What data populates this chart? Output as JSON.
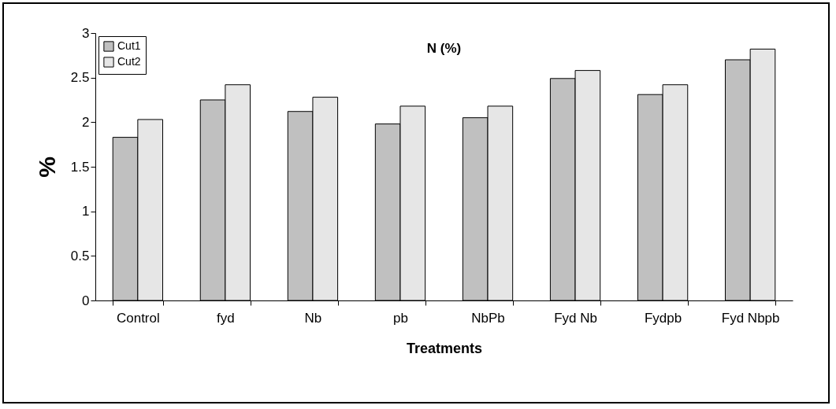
{
  "chart_data": {
    "type": "bar",
    "title": "N (%)",
    "xlabel": "Treatments",
    "ylabel": "%",
    "categories": [
      "Control",
      "fyd",
      "Nb",
      "pb",
      "NbPb",
      "Fyd Nb",
      "Fydpb",
      "Fyd Nbpb"
    ],
    "series": [
      {
        "name": "Cut1",
        "color": "#c0c0c0",
        "values": [
          1.83,
          2.25,
          2.12,
          1.98,
          2.05,
          2.49,
          2.31,
          2.7
        ]
      },
      {
        "name": "Cut2",
        "color": "#e6e6e6",
        "values": [
          2.03,
          2.42,
          2.28,
          2.18,
          2.18,
          2.58,
          2.42,
          2.82
        ]
      }
    ],
    "ylim": [
      0,
      3
    ],
    "yticks": [
      0,
      0.5,
      1,
      1.5,
      2,
      2.5,
      3
    ],
    "grid": false,
    "legend": "top left"
  }
}
